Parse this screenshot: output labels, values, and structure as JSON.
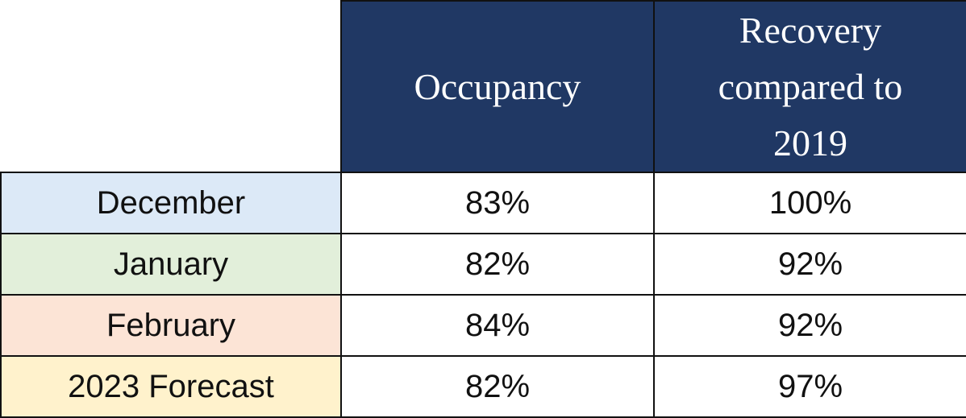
{
  "table": {
    "header": [
      "Occupancy",
      "Recovery compared to 2019"
    ],
    "rows": [
      [
        "December",
        "83%",
        "100%"
      ],
      [
        "January",
        "82%",
        "92%"
      ],
      [
        "February",
        "84%",
        "92%"
      ],
      [
        "2023 Forecast",
        "82%",
        "97%"
      ]
    ]
  }
}
